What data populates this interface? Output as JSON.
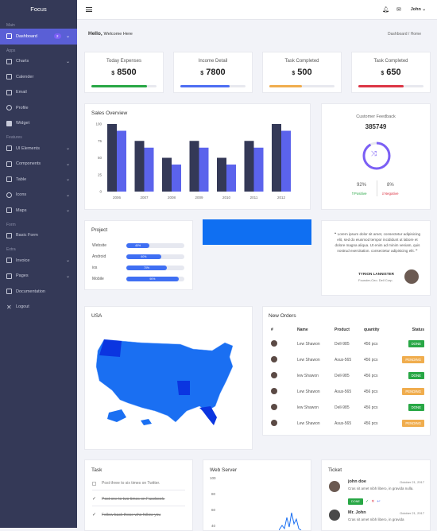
{
  "brand": "Focus",
  "sidebar": {
    "sections": {
      "main": "Main",
      "apps": "Apps",
      "features": "Features",
      "form": "Form",
      "extra": "Extra"
    },
    "items": [
      {
        "label": "Dashboard",
        "badge": "2"
      },
      {
        "label": "Charts"
      },
      {
        "label": "Calender"
      },
      {
        "label": "Email"
      },
      {
        "label": "Profile"
      },
      {
        "label": "Widget"
      },
      {
        "label": "UI Elements"
      },
      {
        "label": "Components"
      },
      {
        "label": "Table"
      },
      {
        "label": "Icons"
      },
      {
        "label": "Maps"
      },
      {
        "label": "Basic Form"
      },
      {
        "label": "Invoice"
      },
      {
        "label": "Pages"
      },
      {
        "label": "Documentation"
      },
      {
        "label": "Logout"
      }
    ]
  },
  "topbar": {
    "user": "John"
  },
  "greeting": {
    "hello": "Hello,",
    "sub": "Welcome Here"
  },
  "breadcrumb": {
    "home": "Dashboard",
    "sep": "/",
    "current": "Home"
  },
  "stats": [
    {
      "title": "Today Expenses",
      "currency": "$",
      "value": "8500",
      "color": "#28a745",
      "pct": 0.85
    },
    {
      "title": "Income Detail",
      "currency": "$",
      "value": "7800",
      "color": "#4e6ef2",
      "pct": 0.75
    },
    {
      "title": "Task Completed",
      "currency": "$",
      "value": "500",
      "color": "#f0ad4e",
      "pct": 0.5
    },
    {
      "title": "Task Completed",
      "currency": "$",
      "value": "650",
      "color": "#dc3545",
      "pct": 0.7
    }
  ],
  "sales": {
    "title": "Sales Overview"
  },
  "chart_data": {
    "type": "bar",
    "categories": [
      "2006",
      "2007",
      "2008",
      "2009",
      "2010",
      "2011",
      "2012"
    ],
    "series": [
      {
        "values": [
          100,
          75,
          50,
          75,
          50,
          75,
          100
        ],
        "color": "#343957"
      },
      {
        "values": [
          90,
          65,
          40,
          65,
          40,
          65,
          90
        ],
        "color": "#5b63ec"
      }
    ],
    "yticks": [
      "100",
      "75",
      "50",
      "25",
      "0"
    ],
    "ylim": [
      0,
      100
    ]
  },
  "feedback": {
    "title": "Customer Feedback",
    "count": "385749",
    "pos_pct": "92%",
    "pos_label": "Positive",
    "neg_pct": "8%",
    "neg_label": "Negative"
  },
  "project": {
    "title": "Project",
    "rows": [
      {
        "label": "Website",
        "pct": "40%",
        "val": 0.4
      },
      {
        "label": "Android",
        "pct": "60%",
        "val": 0.6
      },
      {
        "label": "ios",
        "pct": "70%",
        "val": 0.7
      },
      {
        "label": "Mobile",
        "pct": "90%",
        "val": 0.9
      }
    ]
  },
  "testimonial": {
    "text": "Lorem ipsum dolor sit amet, consectetur adipisicing elit, sed do eiusmod tempor incididunt ut labore et dolore magna aliqua. Ut enim ad minim veniam, quis nostrud exercitation. consectetur adipisicing elit.",
    "name": "TYRION LANNISTER",
    "role": "Founder-Ceo. Dell Corp."
  },
  "map": {
    "title": "USA"
  },
  "orders": {
    "title": "New Orders",
    "headers": [
      "#",
      "Name",
      "Product",
      "quantity",
      "Status"
    ],
    "rows": [
      {
        "name": "Lew Shawon",
        "product": "Dell-985",
        "qty": "456 pcs",
        "status": "DONE",
        "color": "#28a745"
      },
      {
        "name": "Lew Shawon",
        "product": "Asus-565",
        "qty": "456 pcs",
        "status": "PENDING",
        "color": "#f0ad4e"
      },
      {
        "name": "lew Shawon",
        "product": "Dell-985",
        "qty": "456 pcs",
        "status": "DONE",
        "color": "#28a745"
      },
      {
        "name": "Lew Shawon",
        "product": "Asus-565",
        "qty": "456 pcs",
        "status": "PENDING",
        "color": "#f0ad4e"
      },
      {
        "name": "lew Shawon",
        "product": "Dell-985",
        "qty": "456 pcs",
        "status": "DONE",
        "color": "#28a745"
      },
      {
        "name": "Lew Shawon",
        "product": "Asus-565",
        "qty": "456 pcs",
        "status": "PENDING",
        "color": "#f0ad4e"
      }
    ]
  },
  "task": {
    "title": "Task",
    "items": [
      "Post three to six times on Twitter.",
      "Post one to two times on Facebook.",
      "Follow back those who follow you"
    ]
  },
  "webserver": {
    "title": "Web Server",
    "yticks": [
      "100",
      "80",
      "60",
      "40"
    ]
  },
  "ticket": {
    "title": "Ticket",
    "items": [
      {
        "name": "john doe",
        "date": "October 21, 2017",
        "text": "Cras sit amet nibh libero, in gravida nulla.",
        "badge": "DONE"
      },
      {
        "name": "Mr. John",
        "date": "October 21, 2017",
        "text": "Cras sit amet nibh libero, in gravida"
      }
    ]
  }
}
